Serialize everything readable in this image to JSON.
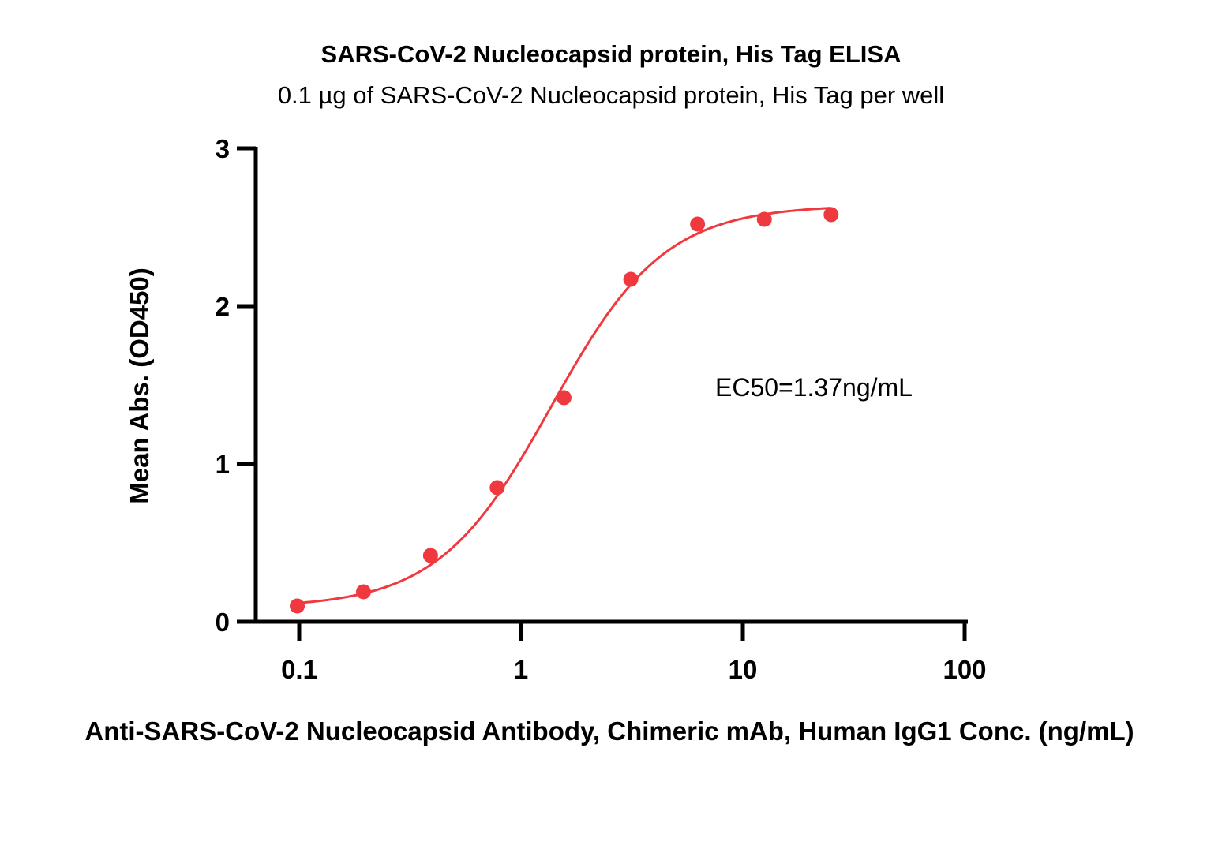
{
  "chart_data": {
    "type": "scatter",
    "title": "SARS-CoV-2 Nucleocapsid protein, His Tag ELISA",
    "subtitle": "0.1 µg of SARS-CoV-2 Nucleocapsid protein, His Tag per well",
    "xlabel": "Anti-SARS-CoV-2 Nucleocapsid Antibody, Chimeric mAb, Human IgG1 Conc. (ng/mL)",
    "ylabel": "Mean Abs. (OD450)",
    "xscale": "log",
    "xlim": [
      0.063,
      100
    ],
    "ylim": [
      0,
      3
    ],
    "xticks": [
      0.1,
      1,
      10,
      100
    ],
    "xtick_labels": [
      "0.1",
      "1",
      "10",
      "100"
    ],
    "yticks": [
      0,
      1,
      2,
      3
    ],
    "ytick_labels": [
      "0",
      "1",
      "2",
      "3"
    ],
    "grid": false,
    "annotation": "EC50=1.37ng/mL",
    "color": "#f0393e",
    "series": [
      {
        "x": [
          0.098,
          0.195,
          0.391,
          0.781,
          1.5625,
          3.125,
          6.25,
          12.5,
          25
        ],
        "y": [
          0.1,
          0.19,
          0.42,
          0.85,
          1.42,
          2.17,
          2.52,
          2.55,
          2.58
        ]
      }
    ],
    "fit": {
      "model": "4PL",
      "bottom": 0.09,
      "top": 2.64,
      "ec50": 1.37,
      "hill": 1.7
    }
  }
}
